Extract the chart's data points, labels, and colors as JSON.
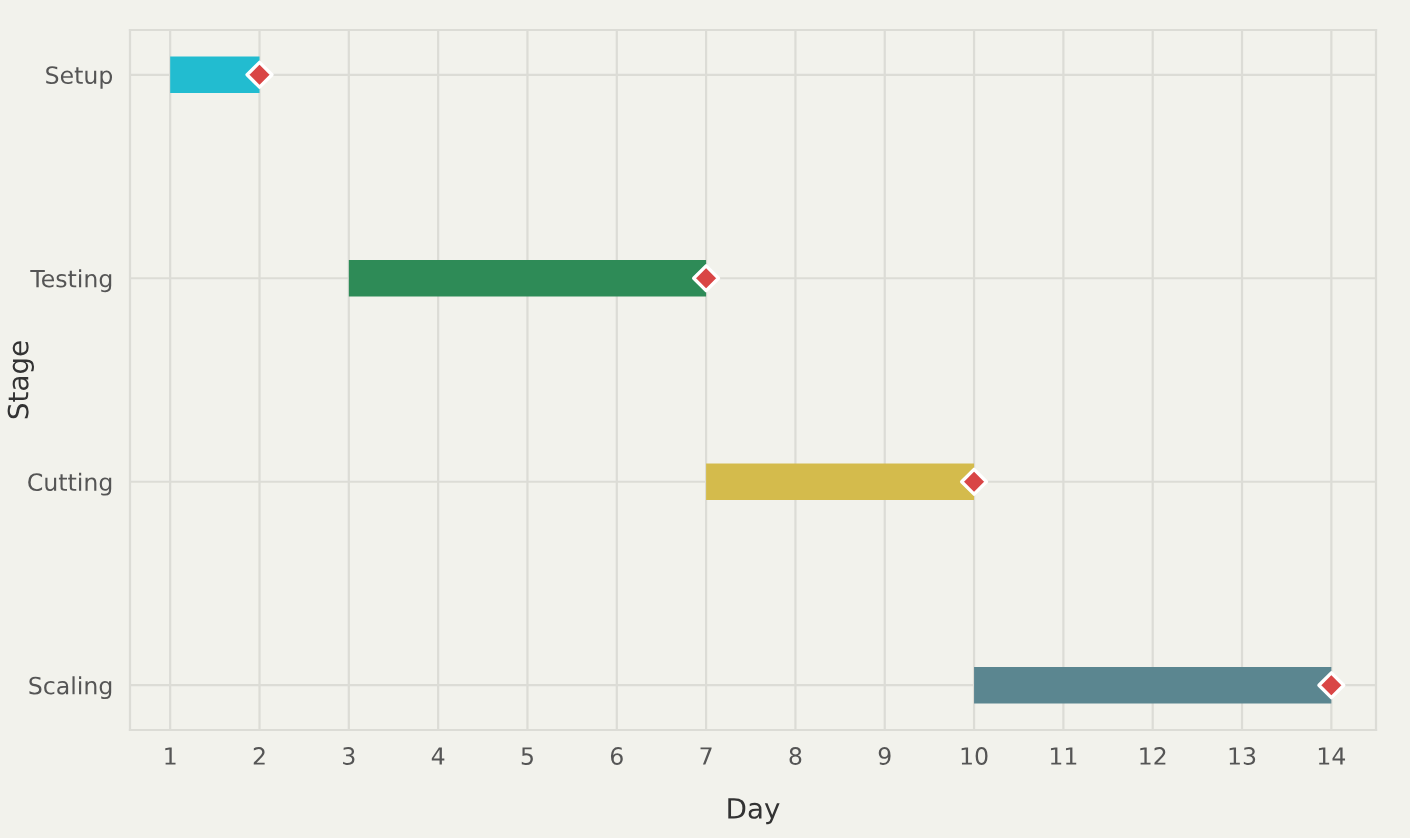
{
  "chart_data": {
    "type": "bar",
    "orientation": "horizontal",
    "categories": [
      "Setup",
      "Testing",
      "Cutting",
      "Scaling"
    ],
    "series": [
      {
        "colors": [
          "#22bcd0",
          "#2e8b57",
          "#d4bb4c",
          "#5b8690"
        ],
        "base": [
          1,
          3,
          7,
          10
        ],
        "values": [
          1,
          4,
          3,
          4
        ]
      },
      {
        "type": "scatter",
        "color": "#d94545",
        "marker": "diamond",
        "values": [
          2,
          7,
          10,
          14
        ]
      }
    ],
    "xlabel": "Day",
    "ylabel": "Stage",
    "xlim": [
      0.55,
      14.5
    ],
    "xticks": [
      1,
      2,
      3,
      4,
      5,
      6,
      7,
      8,
      9,
      10,
      11,
      12,
      13,
      14
    ],
    "grid": true,
    "legend": false
  }
}
